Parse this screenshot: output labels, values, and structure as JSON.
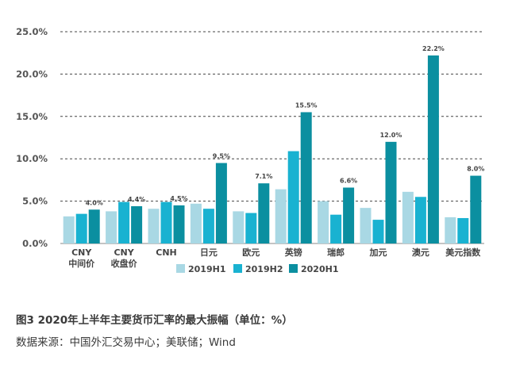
{
  "chart_data": {
    "type": "bar",
    "categories": [
      [
        "CNY",
        "中间价"
      ],
      [
        "CNY",
        "收盘价"
      ],
      [
        "CNH"
      ],
      [
        "日元"
      ],
      [
        "欧元"
      ],
      [
        "英镑"
      ],
      [
        "瑞郎"
      ],
      [
        "加元"
      ],
      [
        "澳元"
      ],
      [
        "美元指数"
      ]
    ],
    "series": [
      {
        "name": "2019H1",
        "color": "#a9d8e4",
        "values": [
          3.2,
          3.8,
          4.1,
          4.7,
          3.8,
          6.4,
          5.0,
          4.2,
          6.1,
          3.1
        ]
      },
      {
        "name": "2019H2",
        "color": "#19b2d1",
        "values": [
          3.5,
          4.9,
          4.9,
          4.1,
          3.6,
          10.9,
          3.4,
          2.8,
          5.5,
          3.0
        ]
      },
      {
        "name": "2020H1",
        "color": "#0b8fa0",
        "values": [
          4.0,
          4.4,
          4.5,
          9.5,
          7.1,
          15.5,
          6.6,
          12.0,
          22.2,
          8.0
        ]
      }
    ],
    "data_labels": [
      "4.0%",
      "4.4%",
      "4.5%",
      "9.5%",
      "7.1%",
      "15.5%",
      "6.6%",
      "12.0%",
      "22.2%",
      "8.0%"
    ],
    "y_ticks": [
      "0.0%",
      "5.0%",
      "10.0%",
      "15.0%",
      "20.0%",
      "25.0%"
    ],
    "ylim": [
      0,
      25
    ],
    "grid": "dashed horizontal",
    "legend": "bottom-center"
  },
  "captions": {
    "title": "图3  2020年上半年主要货币汇率的最大振幅（单位：%）",
    "source": "数据来源：中国外汇交易中心；美联储；Wind"
  }
}
